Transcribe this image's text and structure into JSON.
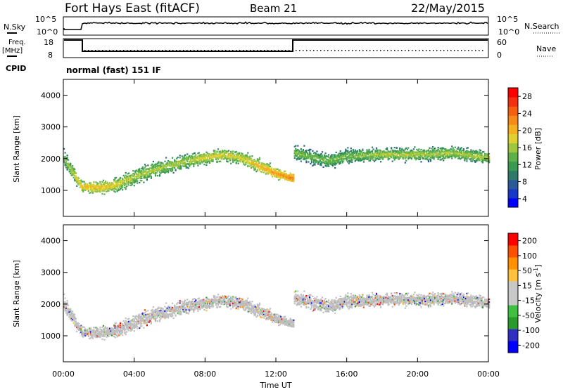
{
  "header": {
    "title": "Fort Hays East (fitACF)",
    "beam": "Beam 21",
    "date": "22/May/2015"
  },
  "status_panels": {
    "nsky_label": "N.Sky",
    "nsearch_label": "N.Search",
    "nsky_ticks": [
      "10^5",
      "10^0"
    ],
    "nsearch_ticks": [
      "10^5",
      "10^0"
    ],
    "freq_label": "Freq.",
    "freq_unit": "[MHz]",
    "freq_ticks": [
      "18",
      "8"
    ],
    "nave_label": "Nave",
    "nave_ticks": [
      "60",
      "0"
    ],
    "cpid_label": "CPID",
    "cpid_text": "normal (fast) 151 IF"
  },
  "chart_data": [
    {
      "type": "heatmap",
      "ylabel": "Slant Range [km]",
      "yticks": [
        "4000",
        "3000",
        "2000",
        "1000"
      ],
      "ylim": [
        180,
        4500
      ],
      "xlim": [
        0,
        24
      ],
      "colorbar": {
        "label": "Power [dB]",
        "ticks": [
          "28",
          "24",
          "20",
          "16",
          "12",
          "8",
          "4"
        ],
        "range": [
          0,
          30
        ],
        "colors": [
          "#0000ff",
          "#1838c8",
          "#2a5a9a",
          "#2e7a6a",
          "#3a9a52",
          "#5db04a",
          "#9ec640",
          "#ddd030",
          "#f5b020",
          "#f58a18",
          "#f56010",
          "#f53010",
          "#ff0000"
        ]
      },
      "echo_bands": [
        {
          "name": "main",
          "points": [
            [
              0,
              2050,
              350,
              14
            ],
            [
              1,
              1150,
              250,
              20
            ],
            [
              2,
              1100,
              300,
              20
            ],
            [
              3,
              1200,
              350,
              18
            ],
            [
              4,
              1450,
              400,
              16
            ],
            [
              5,
              1650,
              400,
              16
            ],
            [
              6,
              1800,
              350,
              16
            ],
            [
              7,
              1950,
              350,
              16
            ],
            [
              8,
              2050,
              300,
              18
            ],
            [
              9,
              2150,
              300,
              18
            ],
            [
              10,
              2050,
              300,
              18
            ],
            [
              11,
              1800,
              300,
              20
            ],
            [
              12,
              1550,
              250,
              22
            ],
            [
              13,
              1400,
              200,
              24
            ],
            [
              13.01,
              2200,
              350,
              14
            ],
            [
              15,
              1950,
              350,
              14
            ],
            [
              16,
              2100,
              350,
              14
            ],
            [
              18,
              2150,
              300,
              16
            ],
            [
              20,
              2150,
              300,
              16
            ],
            [
              22,
              2200,
              300,
              16
            ],
            [
              24,
              2050,
              300,
              16
            ]
          ]
        }
      ]
    },
    {
      "type": "heatmap",
      "ylabel": "Slant Range [km]",
      "yticks": [
        "4000",
        "3000",
        "2000",
        "1000"
      ],
      "ylim": [
        180,
        4500
      ],
      "xlim": [
        0,
        24
      ],
      "xticks": [
        "00:00",
        "04:00",
        "08:00",
        "12:00",
        "16:00",
        "20:00",
        "00:00"
      ],
      "xlabel": "Time UT",
      "colorbar": {
        "label": "Velocity [m s",
        "label_sup": "-1",
        "label_end": "]",
        "ticks": [
          "200",
          "100",
          "50",
          "15",
          "-15",
          "-50",
          "-100",
          "-200"
        ],
        "range": [
          -250,
          250
        ],
        "colors": [
          "#ff0000",
          "#ff5000",
          "#ff9000",
          "#ffc040",
          "#c8c8c8",
          "#c8c8c8",
          "#40c040",
          "#2a9a2a",
          "#3030c0",
          "#0000ff"
        ]
      },
      "ground_scatter_color": "#bebebe"
    }
  ]
}
